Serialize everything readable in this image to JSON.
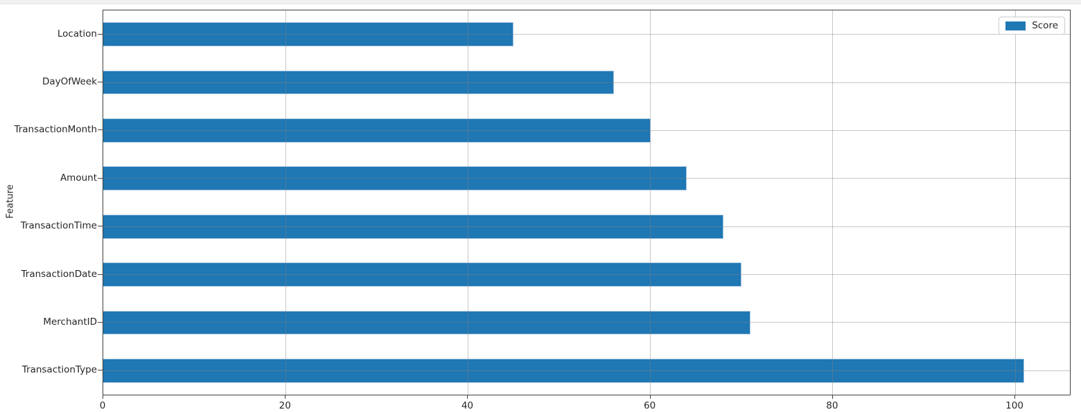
{
  "chart_data": {
    "type": "bar",
    "orientation": "horizontal",
    "title": "",
    "xlabel": "",
    "ylabel": "Feature",
    "categories": [
      "Location",
      "DayOfWeek",
      "TransactionMonth",
      "Amount",
      "TransactionTime",
      "TransactionDate",
      "MerchantID",
      "TransactionType"
    ],
    "series": [
      {
        "name": "Score",
        "values": [
          45,
          56,
          60,
          64,
          68,
          70,
          71,
          101
        ]
      }
    ],
    "x_ticks": [
      0,
      20,
      40,
      60,
      80,
      100
    ],
    "xlim": [
      0,
      106
    ],
    "bar_width_fraction": 0.5,
    "grid": true,
    "grid_over_bars": true,
    "legend": {
      "position": "upper right",
      "entries": [
        "Score"
      ]
    },
    "colors": {
      "bar_fill": "#1f77b4",
      "bar_edge": "#a9c6e0",
      "grid": "#8c8c8c",
      "spine": "#3f3f3f",
      "text": "#262626"
    }
  }
}
